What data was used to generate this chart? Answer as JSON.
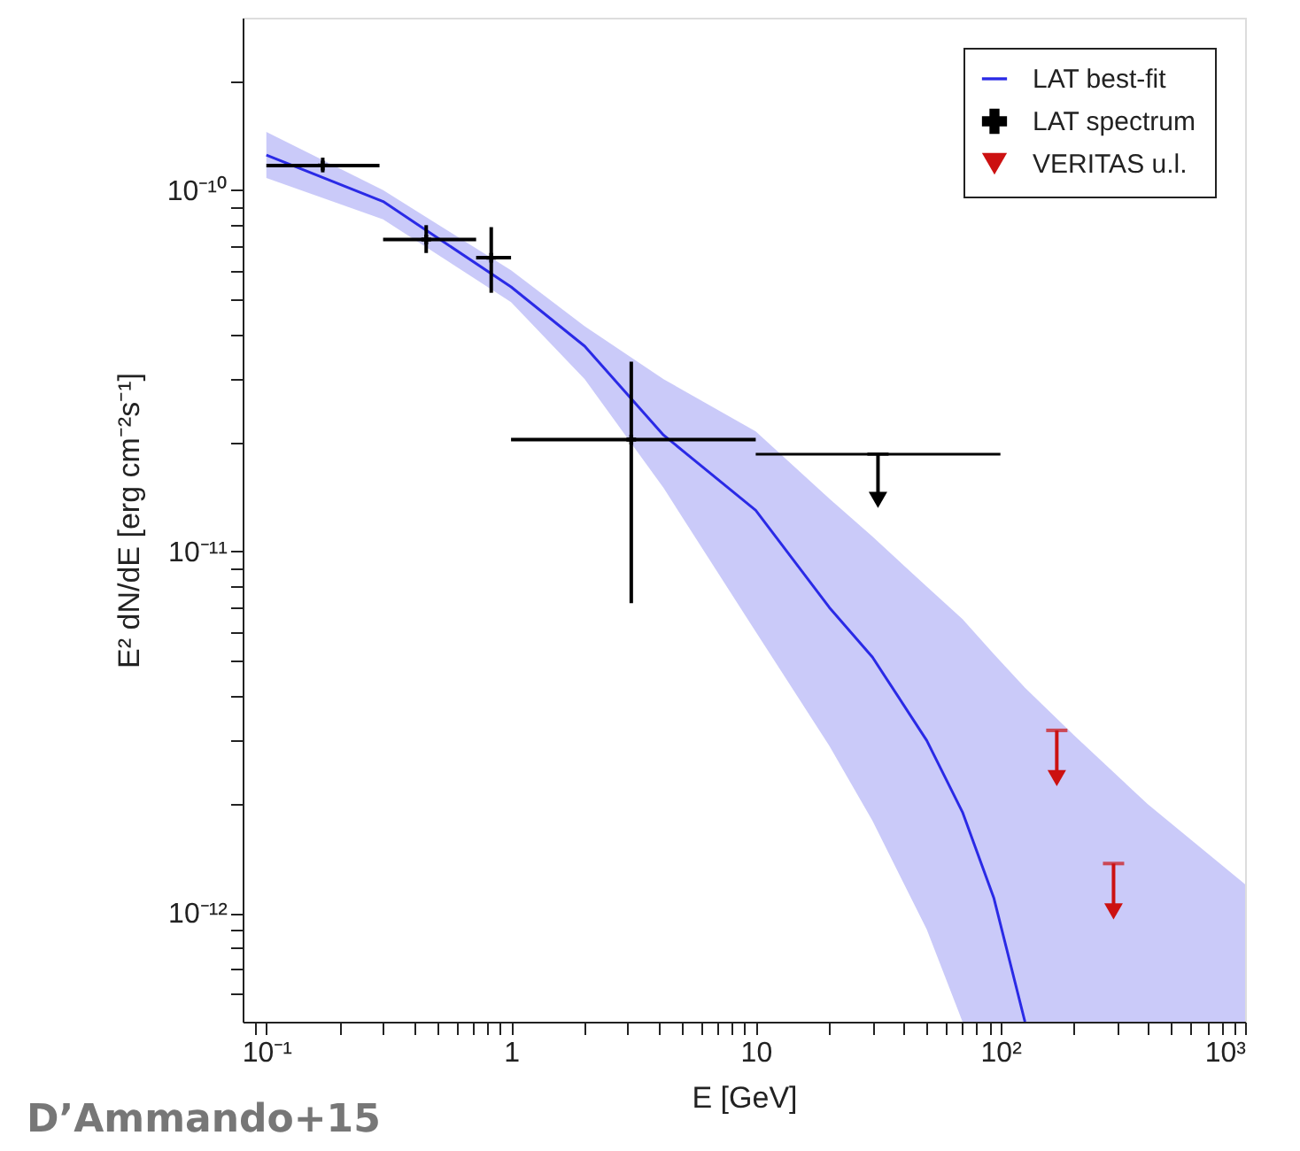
{
  "chart_data": {
    "type": "scatter",
    "xlabel": "E [GeV]",
    "ylabel": "E² dN/dE [erg cm⁻²s⁻¹]",
    "log": "xy",
    "grid": false,
    "legend": "top right",
    "xlim": [
      0.08,
      1000
    ],
    "ylim": [
      5e-13,
      3e-10
    ],
    "xticks": [
      {
        "value": 0.09,
        "label": null
      },
      {
        "value": 0.1,
        "label": "10⁻¹"
      },
      {
        "value": 0.2,
        "label": null
      },
      {
        "value": 0.3,
        "label": null
      },
      {
        "value": 0.4,
        "label": null
      },
      {
        "value": 0.5,
        "label": null
      },
      {
        "value": 0.6,
        "label": null
      },
      {
        "value": 0.7,
        "label": null
      },
      {
        "value": 0.8,
        "label": null
      },
      {
        "value": 0.9,
        "label": null
      },
      1,
      {
        "value": 2,
        "label": null
      },
      {
        "value": 3,
        "label": null
      },
      {
        "value": 4,
        "label": null
      },
      {
        "value": 5,
        "label": null
      },
      {
        "value": 6,
        "label": null
      },
      {
        "value": 7,
        "label": null
      },
      {
        "value": 8,
        "label": null
      },
      {
        "value": 9,
        "label": null
      },
      10,
      {
        "value": 20,
        "label": null
      },
      {
        "value": 30,
        "label": null
      },
      {
        "value": 40,
        "label": null
      },
      {
        "value": 50,
        "label": null
      },
      {
        "value": 60,
        "label": null
      },
      {
        "value": 70,
        "label": null
      },
      {
        "value": 80,
        "label": null
      },
      {
        "value": 90,
        "label": null
      },
      {
        "value": 100,
        "label": "10²"
      },
      {
        "value": 200,
        "label": null
      },
      {
        "value": 300,
        "label": null
      },
      {
        "value": 400,
        "label": null
      },
      {
        "value": 500,
        "label": null
      },
      {
        "value": 600,
        "label": null
      },
      {
        "value": 700,
        "label": null
      },
      {
        "value": 800,
        "label": null
      },
      {
        "value": 900,
        "label": null
      },
      {
        "value": 1000,
        "label": "10³"
      }
    ],
    "yticks": [
      {
        "value": 6e-13,
        "label": null
      },
      {
        "value": 7e-13,
        "label": null
      },
      {
        "value": 8e-13,
        "label": null
      },
      {
        "value": 9e-13,
        "label": null
      },
      {
        "value": 1e-12,
        "label": "10⁻¹²"
      },
      {
        "value": 2e-12,
        "label": null
      },
      {
        "value": 3e-12,
        "label": null
      },
      {
        "value": 4e-12,
        "label": null
      },
      {
        "value": 5e-12,
        "label": null
      },
      {
        "value": 6e-12,
        "label": null
      },
      {
        "value": 7e-12,
        "label": null
      },
      {
        "value": 8e-12,
        "label": null
      },
      {
        "value": 9e-12,
        "label": null
      },
      {
        "value": 1e-11,
        "label": "10⁻¹¹"
      },
      {
        "value": 2e-11,
        "label": null
      },
      {
        "value": 3e-11,
        "label": null
      },
      {
        "value": 4e-11,
        "label": null
      },
      {
        "value": 5e-11,
        "label": null
      },
      {
        "value": 6e-11,
        "label": null
      },
      {
        "value": 7e-11,
        "label": null
      },
      {
        "value": 8e-11,
        "label": null
      },
      {
        "value": 9e-11,
        "label": null
      },
      {
        "value": 1e-10,
        "label": "10⁻¹⁰"
      },
      {
        "value": 2e-10,
        "label": null
      }
    ],
    "series": [
      {
        "name": "LAT best-fit",
        "type": "line",
        "color": "#2a2ae6",
        "x": [
          0.1,
          0.3,
          1,
          2,
          4.2,
          10,
          20,
          30,
          50,
          70,
          94,
          126,
          200,
          400,
          1000
        ],
        "values": [
          1.25e-10,
          9.3e-11,
          5.4e-11,
          3.7e-11,
          2.1e-11,
          1.3e-11,
          7e-12,
          5.1e-12,
          3e-12,
          1.9e-12,
          1.1e-12,
          5e-13,
          null,
          null,
          null
        ],
        "upper": [
          1.45e-10,
          1e-10,
          6e-11,
          4.2e-11,
          3e-11,
          2.15e-11,
          1.4e-11,
          1.1e-11,
          8e-12,
          6.5e-12,
          5.2e-12,
          4.2e-12,
          3.1e-12,
          2e-12,
          1.2e-12
        ],
        "lower": [
          1.08e-10,
          8.3e-11,
          4.9e-11,
          3e-11,
          1.5e-11,
          6e-12,
          2.9e-12,
          1.8e-12,
          9e-13,
          5e-13,
          5e-13,
          5e-13,
          5e-13,
          5e-13,
          5e-13
        ]
      },
      {
        "name": "LAT spectrum",
        "type": "scatter",
        "color": "#000000",
        "marker": "cross",
        "x": [
          0.17,
          0.45,
          0.83,
          3.1
        ],
        "values": [
          1.17e-10,
          7.3e-11,
          6.5e-11,
          2.04e-11
        ],
        "errors": [
          [
            1.12e-10,
            1.23e-10
          ],
          [
            6.7e-11,
            8e-11
          ],
          [
            5.2e-11,
            7.9e-11
          ],
          [
            7.2e-12,
            3.35e-11
          ]
        ],
        "xerrors": [
          [
            0.1,
            0.29
          ],
          [
            0.3,
            0.72
          ],
          [
            0.72,
            1.0
          ],
          [
            1,
            10
          ]
        ]
      },
      {
        "type": "line",
        "color": "#000000",
        "x": [
          10,
          100
        ],
        "values": [
          1.86e-11,
          1.86e-11
        ]
      },
      {
        "type": "scatter",
        "color": "#000000",
        "marker": "triangle",
        "x": [
          31.6
        ],
        "values": [
          1.39e-11
        ],
        "errors": [
          [
            1.39e-11,
            1.86e-11
          ]
        ]
      },
      {
        "name": "VERITAS u.l.",
        "type": "scatter",
        "color": "#cc1111",
        "marker": "triangle",
        "x": [
          170,
          290
        ],
        "values": [
          2.36e-12,
          1.01e-12
        ],
        "errors": [
          [
            2.36e-12,
            3.2e-12
          ],
          [
            1.01e-12,
            1.37e-12
          ]
        ]
      }
    ],
    "annotations": [
      "D’Ammando+15"
    ]
  }
}
